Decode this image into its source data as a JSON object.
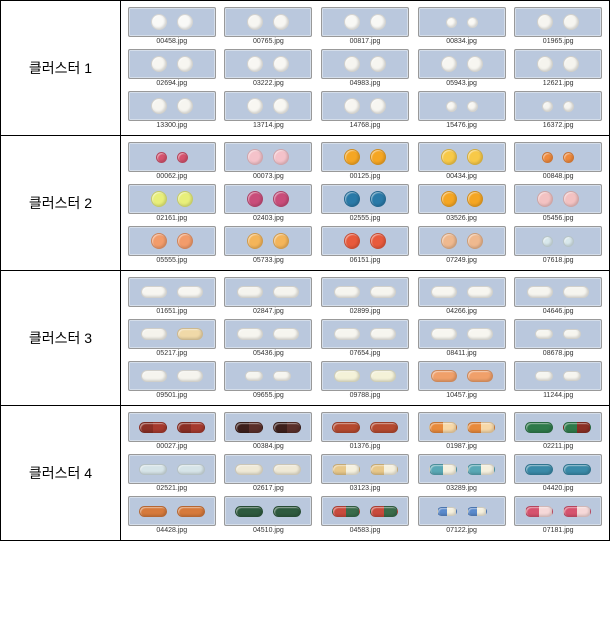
{
  "thumb_bg": "#bac8dd",
  "clusters": [
    {
      "label": "클러스터 1",
      "items": [
        {
          "file": "00458.jpg",
          "shape": "round",
          "c1": "#f9f9f7",
          "c2": "#f9f9f7"
        },
        {
          "file": "00765.jpg",
          "shape": "round",
          "c1": "#f7f6f2",
          "c2": "#f7f6f2"
        },
        {
          "file": "00817.jpg",
          "shape": "round",
          "c1": "#f8f8f5",
          "c2": "#f8f8f5"
        },
        {
          "file": "00834.jpg",
          "shape": "round-sm",
          "c1": "#faf9f5",
          "c2": "#faf9f5"
        },
        {
          "file": "01965.jpg",
          "shape": "round",
          "c1": "#f6f5f0",
          "c2": "#f6f5f0"
        },
        {
          "file": "02694.jpg",
          "shape": "round",
          "c1": "#f7f6f1",
          "c2": "#f7f6f1"
        },
        {
          "file": "03222.jpg",
          "shape": "round",
          "c1": "#f8f7f3",
          "c2": "#f8f7f3"
        },
        {
          "file": "04983.jpg",
          "shape": "round",
          "c1": "#f6f5f0",
          "c2": "#f6f5f0"
        },
        {
          "file": "05943.jpg",
          "shape": "round",
          "c1": "#f7f6f1",
          "c2": "#f7f6f1"
        },
        {
          "file": "12621.jpg",
          "shape": "round",
          "c1": "#f5f4ee",
          "c2": "#f5f4ee"
        },
        {
          "file": "13300.jpg",
          "shape": "round",
          "c1": "#f6f5f0",
          "c2": "#f6f5f0"
        },
        {
          "file": "13714.jpg",
          "shape": "round",
          "c1": "#f8f7f2",
          "c2": "#f8f7f2"
        },
        {
          "file": "14768.jpg",
          "shape": "round",
          "c1": "#f7f6f1",
          "c2": "#f7f6f1"
        },
        {
          "file": "15476.jpg",
          "shape": "round-sm",
          "c1": "#f8f7f2",
          "c2": "#f8f7f2"
        },
        {
          "file": "16372.jpg",
          "shape": "round-sm",
          "c1": "#f6f5f0",
          "c2": "#f6f5f0"
        }
      ]
    },
    {
      "label": "클러스터 2",
      "items": [
        {
          "file": "00062.jpg",
          "shape": "round-sm",
          "c1": "#d6536e",
          "c2": "#d6536e"
        },
        {
          "file": "00073.jpg",
          "shape": "round",
          "c1": "#f4c2ca",
          "c2": "#f4c2ca"
        },
        {
          "file": "00125.jpg",
          "shape": "round",
          "c1": "#f5a623",
          "c2": "#f5a623"
        },
        {
          "file": "00434.jpg",
          "shape": "round",
          "c1": "#f7c948",
          "c2": "#f7c948"
        },
        {
          "file": "00848.jpg",
          "shape": "round-sm",
          "c1": "#f08a3c",
          "c2": "#f08a3c"
        },
        {
          "file": "02161.jpg",
          "shape": "round",
          "c1": "#e8ef7a",
          "c2": "#e8ef7a"
        },
        {
          "file": "02403.jpg",
          "shape": "round",
          "c1": "#c94d7a",
          "c2": "#c94d7a"
        },
        {
          "file": "02555.jpg",
          "shape": "round",
          "c1": "#2a7aa8",
          "c2": "#2a7aa8"
        },
        {
          "file": "03526.jpg",
          "shape": "round",
          "c1": "#f5a623",
          "c2": "#f5a623"
        },
        {
          "file": "05456.jpg",
          "shape": "round",
          "c1": "#f3c2c2",
          "c2": "#f3c2c2"
        },
        {
          "file": "05555.jpg",
          "shape": "round",
          "c1": "#f29c6b",
          "c2": "#f29c6b"
        },
        {
          "file": "05733.jpg",
          "shape": "round",
          "c1": "#f4b55a",
          "c2": "#f4b55a"
        },
        {
          "file": "06151.jpg",
          "shape": "round",
          "c1": "#e85a3c",
          "c2": "#e85a3c"
        },
        {
          "file": "07249.jpg",
          "shape": "round",
          "c1": "#efb98f",
          "c2": "#efb98f"
        },
        {
          "file": "07618.jpg",
          "shape": "round-sm",
          "c1": "#d8e8ec",
          "c2": "#d8e8ec"
        }
      ]
    },
    {
      "label": "클러스터 3",
      "items": [
        {
          "file": "01651.jpg",
          "shape": "oval",
          "c1": "#f7f6f1",
          "c2": "#f7f6f1"
        },
        {
          "file": "02847.jpg",
          "shape": "oval",
          "c1": "#f5f4ee",
          "c2": "#f5f4ee"
        },
        {
          "file": "02899.jpg",
          "shape": "oval",
          "c1": "#f6f5ef",
          "c2": "#f6f5ef"
        },
        {
          "file": "04266.jpg",
          "shape": "oval",
          "c1": "#f7f6f0",
          "c2": "#f7f6f0"
        },
        {
          "file": "04646.jpg",
          "shape": "oval",
          "c1": "#f6f5ef",
          "c2": "#f6f5ef"
        },
        {
          "file": "05217.jpg",
          "shape": "oval",
          "c1": "#f5f3ec",
          "c2": "#f0d9a8"
        },
        {
          "file": "05436.jpg",
          "shape": "oval",
          "c1": "#f6f5ef",
          "c2": "#f6f5ef"
        },
        {
          "file": "07654.jpg",
          "shape": "oval",
          "c1": "#f6f5ef",
          "c2": "#f6f5ef"
        },
        {
          "file": "08411.jpg",
          "shape": "oval",
          "c1": "#f7f6f0",
          "c2": "#f7f6f0"
        },
        {
          "file": "08678.jpg",
          "shape": "oval-sm",
          "c1": "#f6f5ef",
          "c2": "#f6f5ef"
        },
        {
          "file": "09501.jpg",
          "shape": "oval",
          "c1": "#f5f4ee",
          "c2": "#f5f4ee"
        },
        {
          "file": "09655.jpg",
          "shape": "oval-sm",
          "c1": "#f6f5ef",
          "c2": "#f6f5ef"
        },
        {
          "file": "09788.jpg",
          "shape": "oval",
          "c1": "#f4f2d8",
          "c2": "#f4f2d8"
        },
        {
          "file": "10457.jpg",
          "shape": "oval",
          "c1": "#f0a06a",
          "c2": "#f0a06a"
        },
        {
          "file": "11244.jpg",
          "shape": "oval-sm",
          "c1": "#f6f5ef",
          "c2": "#f6f5ef"
        }
      ]
    },
    {
      "label": "클러스터 4",
      "items": [
        {
          "file": "00027.jpg",
          "shape": "capsule",
          "c1": "#a63a2e",
          "c2": "#a63a2e",
          "half": "#8b2f25"
        },
        {
          "file": "00384.jpg",
          "shape": "capsule",
          "c1": "#5a2f2a",
          "c2": "#5a2f2a",
          "half": "#3d1f1b"
        },
        {
          "file": "01376.jpg",
          "shape": "capsule",
          "c1": "#b5492f",
          "c2": "#b5492f"
        },
        {
          "file": "01987.jpg",
          "shape": "capsule",
          "c1": "#f7d8a8",
          "c2": "#f7d8a8",
          "half": "#e88a3c"
        },
        {
          "file": "02211.jpg",
          "shape": "capsule",
          "c1": "#2e7a4a",
          "c2": "#8b2f25",
          "half": "#2e7a4a"
        },
        {
          "file": "02521.jpg",
          "shape": "capsule",
          "c1": "#d6e4e8",
          "c2": "#d6e4e8"
        },
        {
          "file": "02617.jpg",
          "shape": "capsule",
          "c1": "#efe9d6",
          "c2": "#efe9d6"
        },
        {
          "file": "03123.jpg",
          "shape": "capsule",
          "c1": "#f5f0de",
          "c2": "#f5f0de",
          "half": "#e8c88a"
        },
        {
          "file": "03289.jpg",
          "shape": "capsule",
          "c1": "#f5f0de",
          "c2": "#f5f0de",
          "half": "#5aa8b5"
        },
        {
          "file": "04420.jpg",
          "shape": "capsule",
          "c1": "#3a8aa8",
          "c2": "#3a8aa8"
        },
        {
          "file": "04428.jpg",
          "shape": "capsule",
          "c1": "#d67a3c",
          "c2": "#d67a3c"
        },
        {
          "file": "04510.jpg",
          "shape": "capsule",
          "c1": "#2e5a3e",
          "c2": "#2e5a3e"
        },
        {
          "file": "04583.jpg",
          "shape": "capsule",
          "c1": "#3a6b4a",
          "c2": "#3a6b4a",
          "half": "#c84a3c"
        },
        {
          "file": "07122.jpg",
          "shape": "capsule-sm",
          "c1": "#f5f0de",
          "c2": "#f5f0de",
          "half": "#5a8acc"
        },
        {
          "file": "07181.jpg",
          "shape": "capsule",
          "c1": "#f5d8d8",
          "c2": "#f5d8d8",
          "half": "#d6536e"
        }
      ]
    }
  ]
}
